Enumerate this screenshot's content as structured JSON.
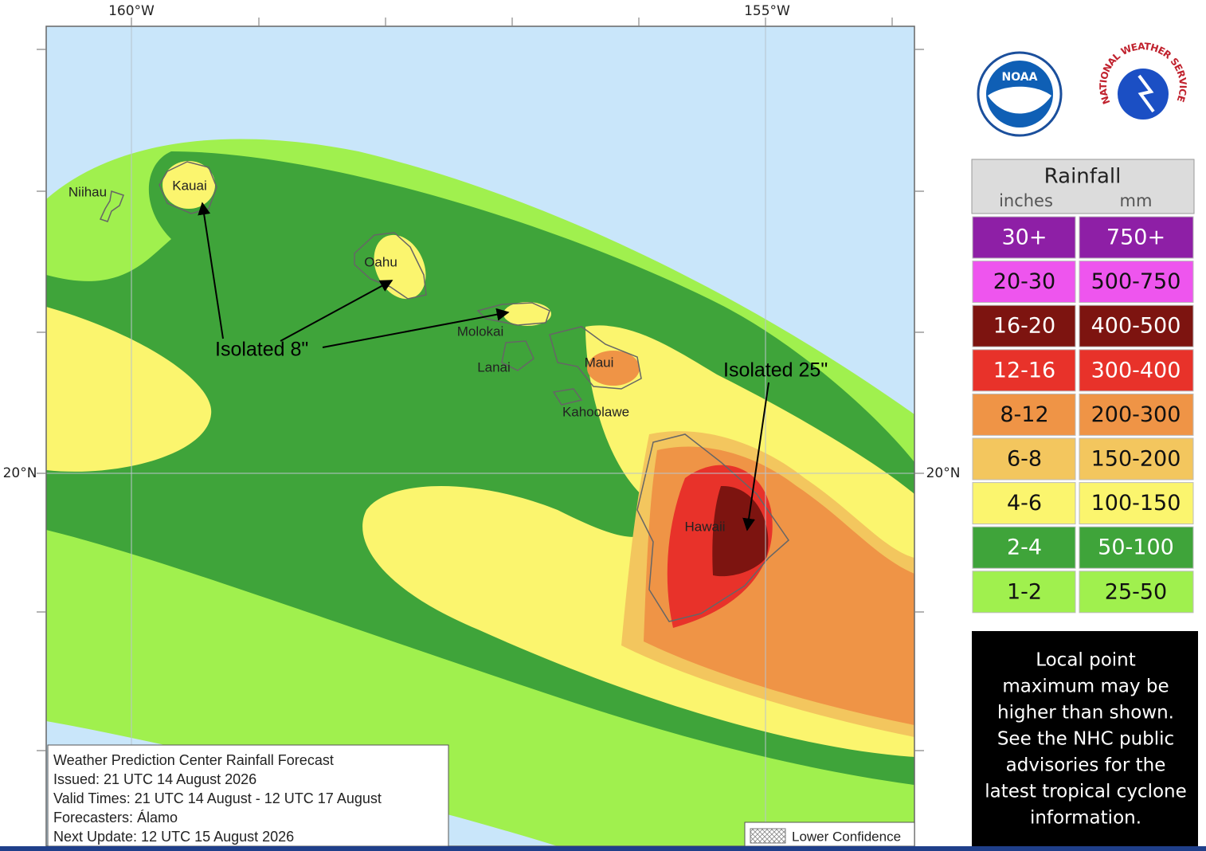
{
  "map": {
    "lon_labels": [
      "160°W",
      "155°W"
    ],
    "lat_labels": [
      "20°N",
      "20°N"
    ],
    "islands": [
      "Niihau",
      "Kauai",
      "Oahu",
      "Molokai",
      "Lanai",
      "Maui",
      "Kahoolawe",
      "Hawaii"
    ],
    "annotations": [
      "Isolated 8\"",
      "Isolated 25\""
    ],
    "info": [
      "Weather Prediction Center Rainfall Forecast",
      "Issued: 21 UTC 14 August 2026",
      "Valid Times: 21 UTC 14 August - 12 UTC 17 August",
      "Forecasters: Álamo",
      "Next Update: 12 UTC 15 August 2026"
    ],
    "lower_confidence": "Lower Confidence"
  },
  "logos": {
    "noaa": "NOAA",
    "nws": "NATIONAL WEATHER SERVICE"
  },
  "legend": {
    "title": "Rainfall",
    "units": [
      "inches",
      "mm"
    ],
    "rows": [
      {
        "inches": "30+",
        "mm": "750+",
        "color": "#8e1fa6"
      },
      {
        "inches": "20-30",
        "mm": "500-750",
        "color": "#ee55ee"
      },
      {
        "inches": "16-20",
        "mm": "400-500",
        "color": "#7d1410"
      },
      {
        "inches": "12-16",
        "mm": "300-400",
        "color": "#e8322a"
      },
      {
        "inches": "8-12",
        "mm": "200-300",
        "color": "#ef9446"
      },
      {
        "inches": "6-8",
        "mm": "150-200",
        "color": "#f3c65e"
      },
      {
        "inches": "4-6",
        "mm": "100-150",
        "color": "#fbf56e"
      },
      {
        "inches": "2-4",
        "mm": "50-100",
        "color": "#3fa43a"
      },
      {
        "inches": "1-2",
        "mm": "25-50",
        "color": "#a0f04e"
      }
    ]
  },
  "note": [
    "Local point",
    "maximum may be",
    "higher than shown.",
    "See the NHC public",
    "advisories for the",
    "latest tropical cyclone",
    "information."
  ]
}
